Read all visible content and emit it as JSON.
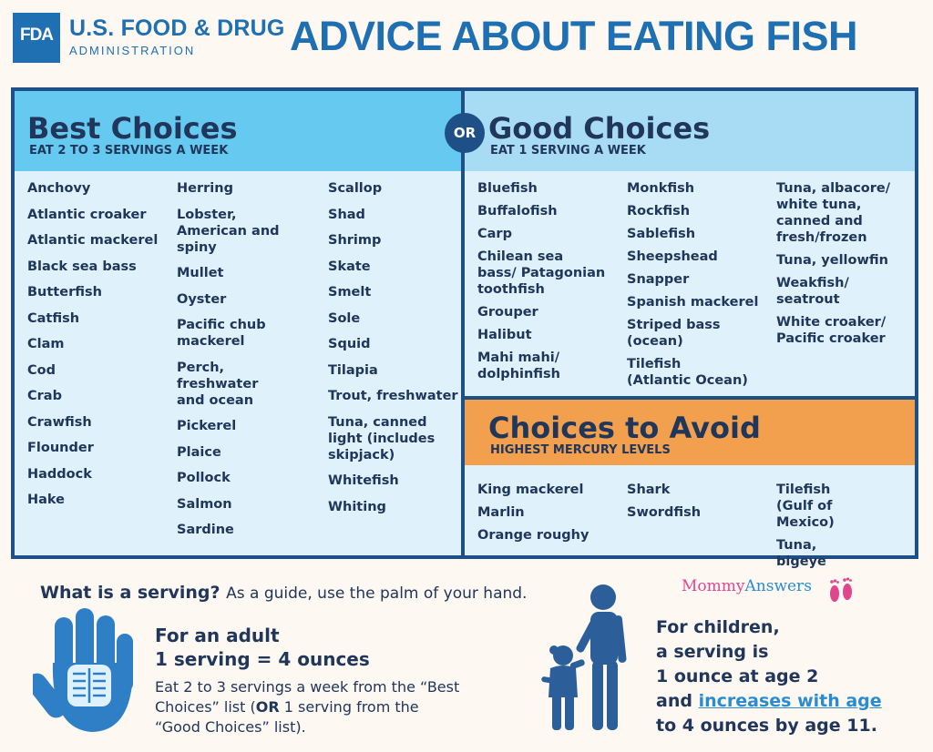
{
  "header": {
    "logo_text": "FDA",
    "agency_name": "U.S. FOOD & DRUG",
    "agency_sub": "ADMINISTRATION",
    "title": "ADVICE ABOUT EATING FISH"
  },
  "or_label": "OR",
  "best": {
    "title": "Best Choices",
    "subtitle": "EAT 2 TO 3 SERVINGS A WEEK",
    "columns": [
      [
        "Anchovy",
        "Atlantic croaker",
        "Atlantic mackerel",
        "Black sea bass",
        "Butterfish",
        "Catfish",
        "Clam",
        "Cod",
        "Crab",
        "Crawfish",
        "Flounder",
        "Haddock",
        "Hake"
      ],
      [
        "Herring",
        "Lobster, American and spiny",
        "Mullet",
        "Oyster",
        "Pacific chub mackerel",
        "Perch, freshwater and ocean",
        "Pickerel",
        "Plaice",
        "Pollock",
        "Salmon",
        "Sardine"
      ],
      [
        "Scallop",
        "Shad",
        "Shrimp",
        "Skate",
        "Smelt",
        "Sole",
        "Squid",
        "Tilapia",
        "Trout, freshwater",
        "Tuna, canned light (includes skipjack)",
        "Whitefish",
        "Whiting"
      ]
    ]
  },
  "good": {
    "title": "Good Choices",
    "subtitle": "EAT 1 SERVING A WEEK",
    "columns": [
      [
        "Bluefish",
        "Buffalofish",
        "Carp",
        "Chilean sea bass/ Patagonian toothfish",
        "Grouper",
        "Halibut",
        "Mahi mahi/ dolphinfish"
      ],
      [
        "Monkfish",
        "Rockfish",
        "Sablefish",
        "Sheepshead",
        "Snapper",
        "Spanish mackerel",
        "Striped bass (ocean)",
        "Tilefish (Atlantic Ocean)"
      ],
      [
        "Tuna, albacore/ white tuna, canned and fresh/frozen",
        "Tuna, yellowfin",
        "Weakfish/ seatrout",
        "White croaker/ Pacific croaker"
      ]
    ]
  },
  "avoid": {
    "title": "Choices to Avoid",
    "subtitle": "HIGHEST MERCURY LEVELS",
    "columns": [
      [
        "King mackerel",
        "Marlin",
        "Orange roughy"
      ],
      [
        "Shark",
        "Swordfish"
      ],
      [
        "Tilefish (Gulf of Mexico)",
        "Tuna, bigeye"
      ]
    ]
  },
  "serving": {
    "question": "What is a serving?",
    "guide": "As a guide, use the palm of your hand.",
    "adult_line1": "For an adult",
    "adult_line2": "1 serving = 4 ounces",
    "adult_desc_a": "Eat 2 to 3 servings a week from the “Best Choices” list (",
    "adult_desc_or": "OR",
    "adult_desc_b": " 1 serving from the “Good Choices” list).",
    "children_line1": "For children,",
    "children_line2": "a serving is",
    "children_line3": "1 ounce at age 2",
    "children_line4a": "and ",
    "children_link": "increases with age",
    "children_line5": "to 4 ounces by age 11."
  },
  "brand": {
    "part1": "Mommy",
    "part2": "Answers"
  },
  "colors": {
    "fda_blue": "#1f6fb3",
    "navy": "#1e4f86",
    "best_header": "#66c9f0",
    "good_header": "#a8dcf5",
    "avoid_header": "#f3a04e",
    "panel_bg": "#dff1fb"
  },
  "icons": [
    "hand-icon",
    "children-silhouette-icon",
    "baby-feet-icon"
  ]
}
